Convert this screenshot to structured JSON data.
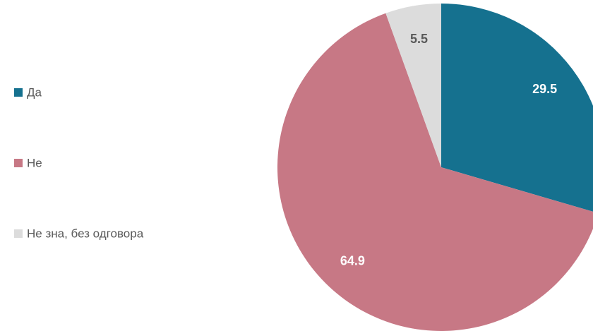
{
  "chart_data": {
    "type": "pie",
    "categories": [
      "Да",
      "Не",
      "Не зна, без одговора"
    ],
    "values": [
      29.5,
      64.9,
      5.5
    ],
    "colors": [
      "#15718f",
      "#c77885",
      "#dcdcdc"
    ],
    "label_colors": [
      "#ffffff",
      "#ffffff",
      "#595959"
    ],
    "legend": "left"
  }
}
